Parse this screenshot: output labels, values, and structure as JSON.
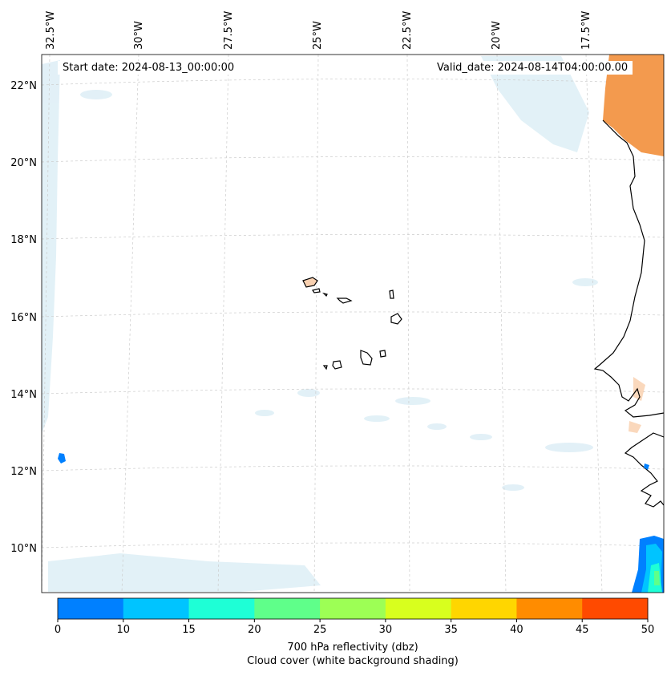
{
  "header": {
    "start_date": "Start date: 2024-08-13_00:00:00",
    "valid_date": "Valid_date: 2024-08-14T04:00:00.00"
  },
  "map": {
    "longitude_labels": [
      "32.5°W",
      "30°W",
      "27.5°W",
      "25°W",
      "22.5°W",
      "20°W",
      "17.5°W"
    ],
    "latitude_labels": [
      "22°N",
      "20°N",
      "18°N",
      "16°N",
      "14°N",
      "12°N",
      "10°N"
    ],
    "features": [
      "coastline-west-africa",
      "cabo-verde-islands",
      "cloud-cover-shading",
      "reflectivity-contours"
    ]
  },
  "colorbar": {
    "ticks": [
      "0",
      "10",
      "15",
      "20",
      "25",
      "30",
      "35",
      "40",
      "45",
      "50"
    ],
    "colors": [
      "#0080ff",
      "#00c4ff",
      "#1effd6",
      "#5fff8a",
      "#9dff55",
      "#d8ff1e",
      "#ffd600",
      "#ff8c00",
      "#ff4a00"
    ],
    "title_line1": "700 hPa reflectivity (dbz)",
    "title_line2": "Cloud cover (white background shading)"
  }
}
